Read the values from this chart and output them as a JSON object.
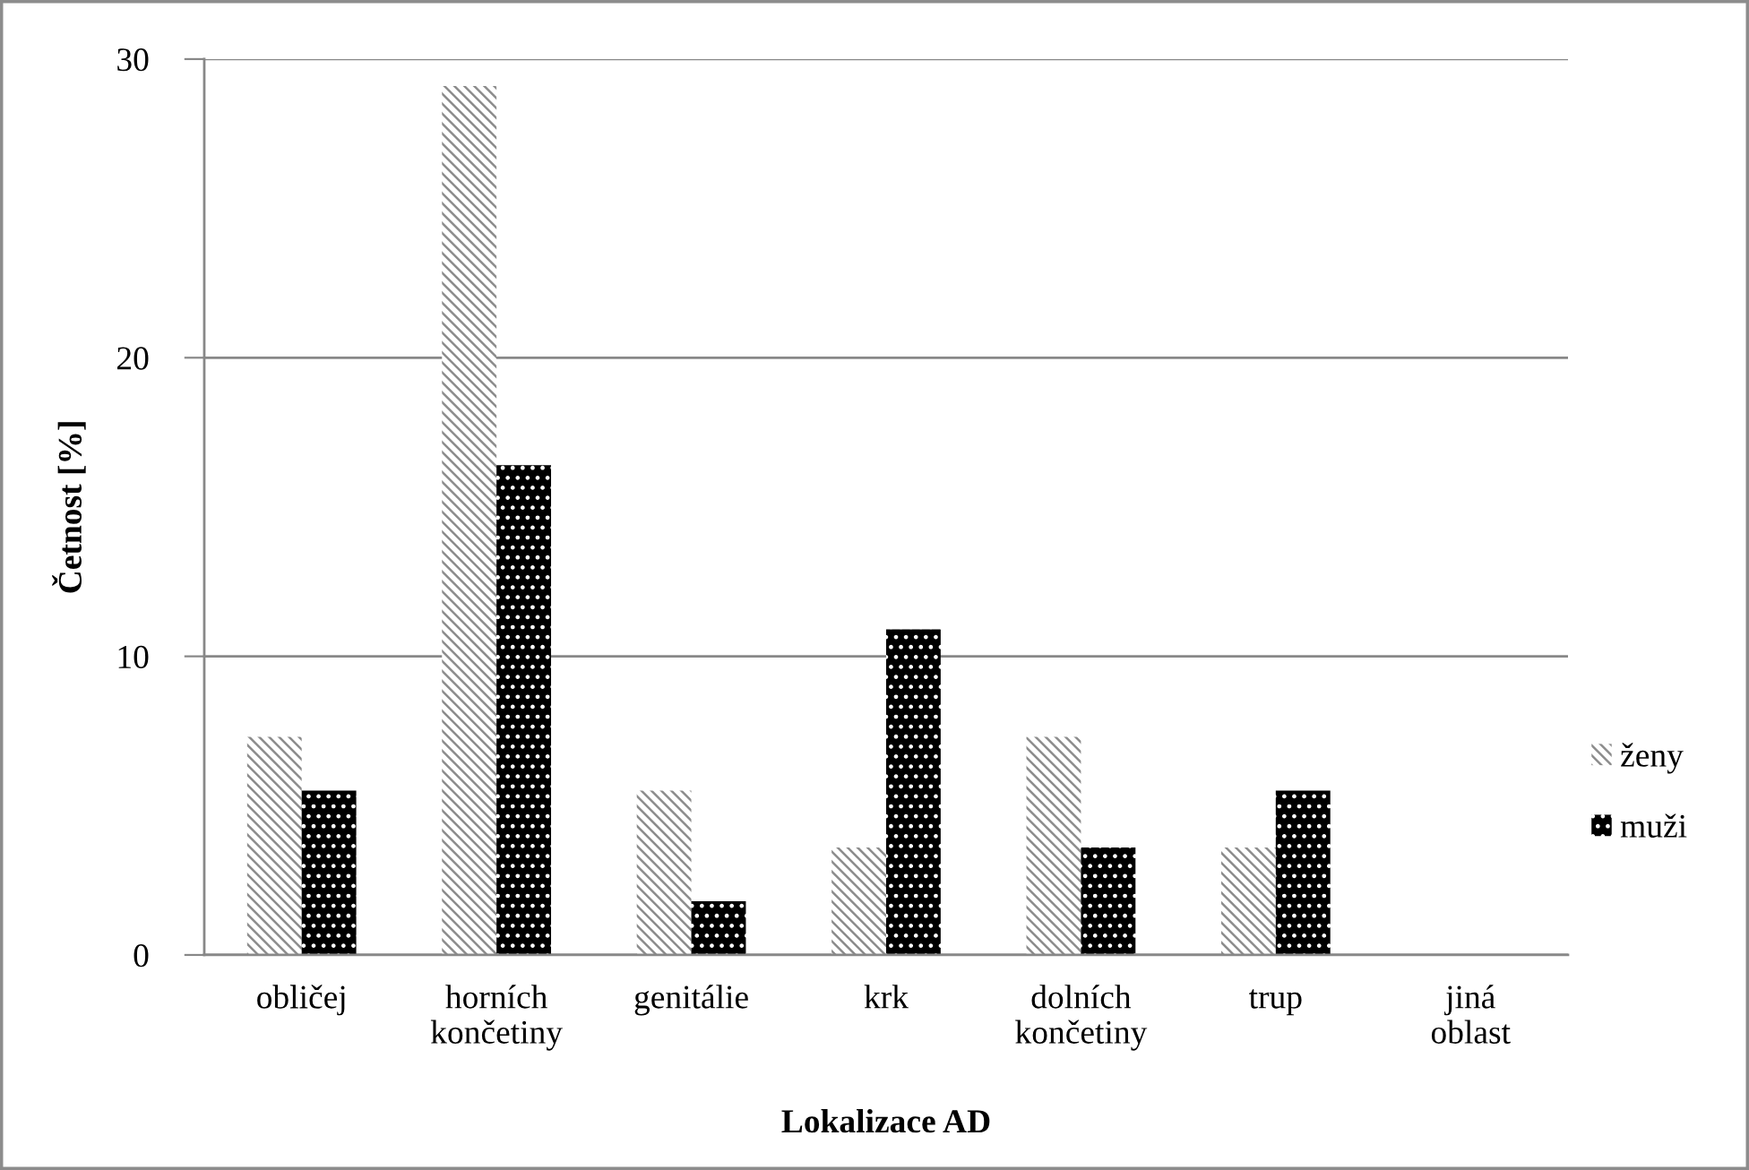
{
  "chart_data": {
    "type": "bar",
    "xlabel": "Lokalizace AD",
    "ylabel": "Četnost [%]",
    "categories": [
      "obličej",
      "horních\nkončetiny",
      "genitálie",
      "krk",
      "dolních\nkončetiny",
      "trup",
      "jiná\noblast"
    ],
    "series": [
      {
        "name": "ženy",
        "color": "#8c8c8c",
        "values": [
          7.3,
          29.1,
          5.5,
          3.6,
          7.3,
          3.6,
          0
        ]
      },
      {
        "name": "muži",
        "color": "#000000",
        "values": [
          5.5,
          16.4,
          1.8,
          10.9,
          3.6,
          5.5,
          0
        ]
      }
    ],
    "ylim": [
      0,
      30
    ],
    "yticks": [
      0,
      10,
      20,
      30
    ],
    "grid": "y",
    "legend": "right"
  }
}
